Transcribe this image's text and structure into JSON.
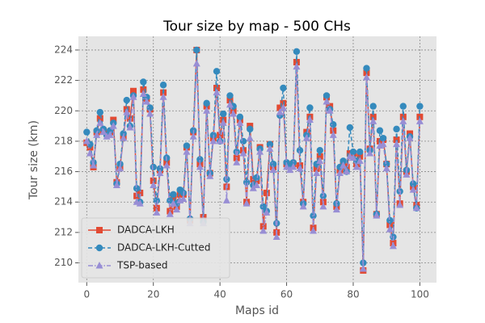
{
  "chart_data": {
    "type": "line",
    "title": "Tour size by map - 500 CHs",
    "x_label": "Maps id",
    "y_label": "Tour size (km)",
    "x": [
      0,
      1,
      2,
      3,
      4,
      5,
      6,
      7,
      8,
      9,
      10,
      11,
      12,
      13,
      14,
      15,
      16,
      17,
      18,
      19,
      20,
      21,
      22,
      23,
      24,
      25,
      26,
      27,
      28,
      29,
      30,
      31,
      32,
      33,
      34,
      35,
      36,
      37,
      38,
      39,
      40,
      41,
      42,
      43,
      44,
      45,
      46,
      47,
      48,
      49,
      50,
      51,
      52,
      53,
      54,
      55,
      56,
      57,
      58,
      59,
      60,
      61,
      62,
      63,
      64,
      65,
      66,
      67,
      68,
      69,
      70,
      71,
      72,
      73,
      74,
      75,
      76,
      77,
      78,
      79,
      80,
      81,
      82,
      83,
      84,
      85,
      86,
      87,
      88,
      89,
      90,
      91,
      92,
      93,
      94,
      95,
      96,
      97,
      98,
      99,
      100
    ],
    "series": [
      {
        "name": "DADCA-LKH",
        "color": "#E24A33",
        "marker": "square",
        "linestyle": "solid",
        "values": [
          217.9,
          217.6,
          216.3,
          218.6,
          219.5,
          218.7,
          218.5,
          218.6,
          219.4,
          215.3,
          216.3,
          218.3,
          220.1,
          219.5,
          221.3,
          214.4,
          214.6,
          221.4,
          220.8,
          220.1,
          215.4,
          213.6,
          216.1,
          221.2,
          216.6,
          213.4,
          214.2,
          213.7,
          214.5,
          214.5,
          217.6,
          212.8,
          218.6,
          224.0,
          216.5,
          213.0,
          220.3,
          215.9,
          218.2,
          221.5,
          218.4,
          219.4,
          215.0,
          220.7,
          220.0,
          216.9,
          219.4,
          217.4,
          214.0,
          219.0,
          215.5,
          215.4,
          217.6,
          212.4,
          214.6,
          217.8,
          216.3,
          212.0,
          220.2,
          220.5,
          216.5,
          216.4,
          216.5,
          223.2,
          216.4,
          214.0,
          218.6,
          219.6,
          212.3,
          216.2,
          217.0,
          214.0,
          220.9,
          220.3,
          218.7,
          213.7,
          216.1,
          216.6,
          216.3,
          217.2,
          217.2,
          216.5,
          217.0,
          209.5,
          222.5,
          217.5,
          219.6,
          213.2,
          218.0,
          218.1,
          216.5,
          212.5,
          211.3,
          218.1,
          213.9,
          219.6,
          216.0,
          218.5,
          215.0,
          213.8,
          219.6
        ]
      },
      {
        "name": "DADCA-LKH-Cutted",
        "color": "#348ABD",
        "marker": "circle",
        "linestyle": "dashed",
        "values": [
          218.6,
          217.8,
          216.6,
          218.7,
          219.9,
          218.8,
          218.4,
          218.7,
          219.2,
          215.2,
          216.5,
          218.5,
          220.7,
          219.0,
          221.0,
          214.9,
          214.0,
          221.9,
          220.9,
          220.2,
          216.3,
          214.1,
          216.2,
          221.7,
          216.9,
          214.1,
          214.5,
          213.9,
          214.8,
          214.6,
          217.7,
          212.9,
          218.7,
          224.0,
          216.8,
          212.7,
          220.5,
          215.9,
          218.4,
          222.6,
          218.0,
          219.8,
          215.5,
          221.0,
          220.3,
          217.3,
          219.6,
          218.0,
          215.3,
          218.8,
          215.1,
          215.6,
          217.5,
          213.7,
          213.4,
          217.8,
          216.5,
          212.6,
          219.7,
          221.5,
          216.6,
          216.3,
          216.6,
          223.9,
          217.4,
          213.9,
          218.4,
          220.2,
          213.1,
          216.5,
          217.4,
          214.4,
          221.0,
          220.1,
          219.1,
          213.9,
          216.3,
          216.7,
          216.0,
          218.9,
          217.3,
          216.7,
          217.3,
          210.0,
          222.8,
          217.4,
          220.3,
          213.2,
          218.7,
          218.2,
          216.5,
          212.8,
          211.7,
          218.8,
          214.7,
          220.3,
          216.1,
          218.3,
          215.2,
          213.6,
          220.3
        ]
      },
      {
        "name": "TSP-based",
        "color": "#988ED5",
        "marker": "triangle",
        "linestyle": "dashdot",
        "values": [
          218.0,
          217.2,
          216.4,
          218.4,
          219.2,
          218.6,
          218.3,
          218.4,
          219.0,
          215.1,
          216.2,
          218.2,
          219.9,
          218.9,
          220.9,
          214.0,
          213.9,
          221.1,
          220.6,
          219.8,
          215.1,
          213.3,
          215.9,
          220.9,
          216.4,
          213.2,
          213.9,
          213.5,
          214.1,
          214.2,
          217.3,
          212.6,
          218.3,
          223.1,
          216.3,
          212.6,
          220.0,
          215.7,
          218.0,
          221.2,
          218.0,
          219.2,
          214.1,
          220.4,
          219.8,
          216.6,
          219.2,
          217.2,
          213.9,
          218.2,
          214.9,
          215.1,
          217.3,
          212.1,
          213.3,
          217.5,
          216.1,
          211.7,
          219.9,
          220.2,
          216.3,
          216.1,
          216.3,
          222.9,
          216.2,
          213.7,
          218.2,
          219.4,
          212.1,
          215.9,
          216.7,
          213.7,
          220.6,
          220.0,
          218.4,
          213.5,
          215.9,
          216.4,
          216.0,
          217.0,
          216.9,
          216.3,
          216.7,
          209.6,
          222.2,
          217.2,
          219.3,
          213.1,
          217.7,
          217.8,
          216.2,
          212.2,
          211.1,
          217.8,
          213.8,
          219.3,
          215.8,
          218.2,
          214.8,
          213.6,
          219.3
        ]
      }
    ],
    "xlim": [
      -2.5,
      105
    ],
    "ylim": [
      208.7,
      224.9
    ],
    "xticks": [
      0,
      20,
      40,
      60,
      80,
      100
    ],
    "yticks": [
      210,
      212,
      214,
      216,
      218,
      220,
      222,
      224
    ],
    "grid": true,
    "legend": "lower left"
  }
}
